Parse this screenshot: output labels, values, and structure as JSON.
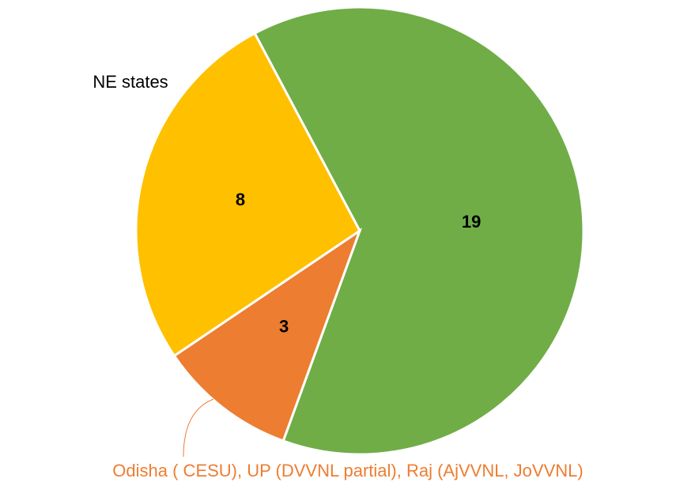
{
  "chart_data": {
    "type": "pie",
    "categories": [
      null,
      "Odisha ( CESU), UP (DVVNL partial), Raj (AjVVNL, JoVVNL)",
      "NE states"
    ],
    "values": [
      19,
      3,
      8
    ],
    "colors": [
      "#70ad47",
      "#ed7d31",
      "#ffc000"
    ],
    "category_label_colors": [
      "#000000",
      "#ed7d31",
      "#000000"
    ]
  }
}
